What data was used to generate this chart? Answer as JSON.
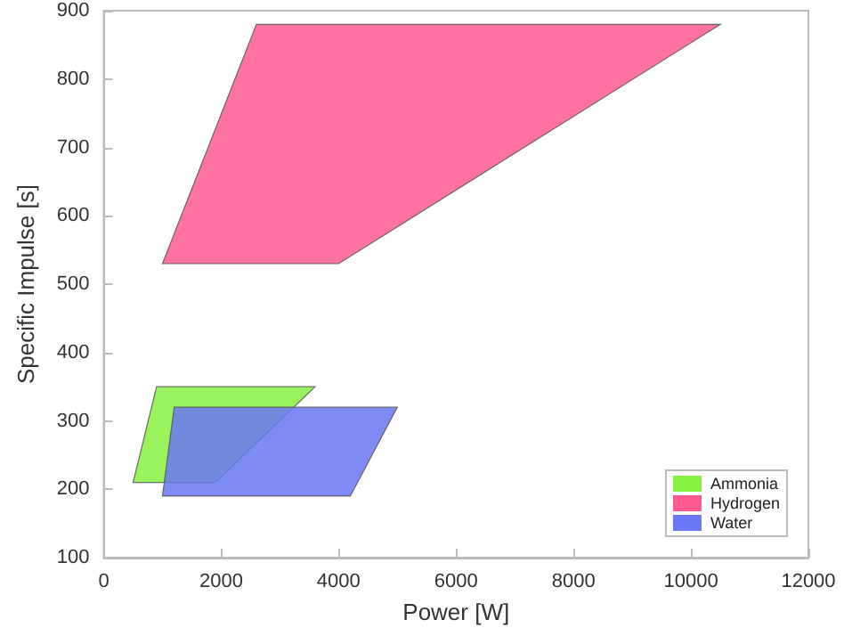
{
  "chart_data": {
    "type": "area",
    "xlabel": "Power [W]",
    "ylabel": "Specific Impulse [s]",
    "xlim": [
      0,
      12000
    ],
    "xticks": [
      0,
      2000,
      4000,
      6000,
      8000,
      10000,
      12000
    ],
    "ylim": [
      100,
      900
    ],
    "yticks": [
      100,
      200,
      300,
      400,
      500,
      600,
      700,
      800,
      900
    ],
    "grid": false,
    "legend": "bottom right",
    "series": [
      {
        "name": "Ammonia",
        "color": "#88f040",
        "x": [
          500,
          900,
          3600,
          1900
        ],
        "values": [
          210,
          350,
          350,
          210
        ]
      },
      {
        "name": "Hydrogen",
        "color": "#fe5a8f",
        "x": [
          1000,
          2600,
          10500,
          4000
        ],
        "values": [
          530,
          880,
          880,
          530
        ]
      },
      {
        "name": "Water",
        "color": "#6a78f5",
        "x": [
          1000,
          1200,
          5000,
          4200
        ],
        "values": [
          190,
          320,
          320,
          190
        ]
      }
    ]
  }
}
